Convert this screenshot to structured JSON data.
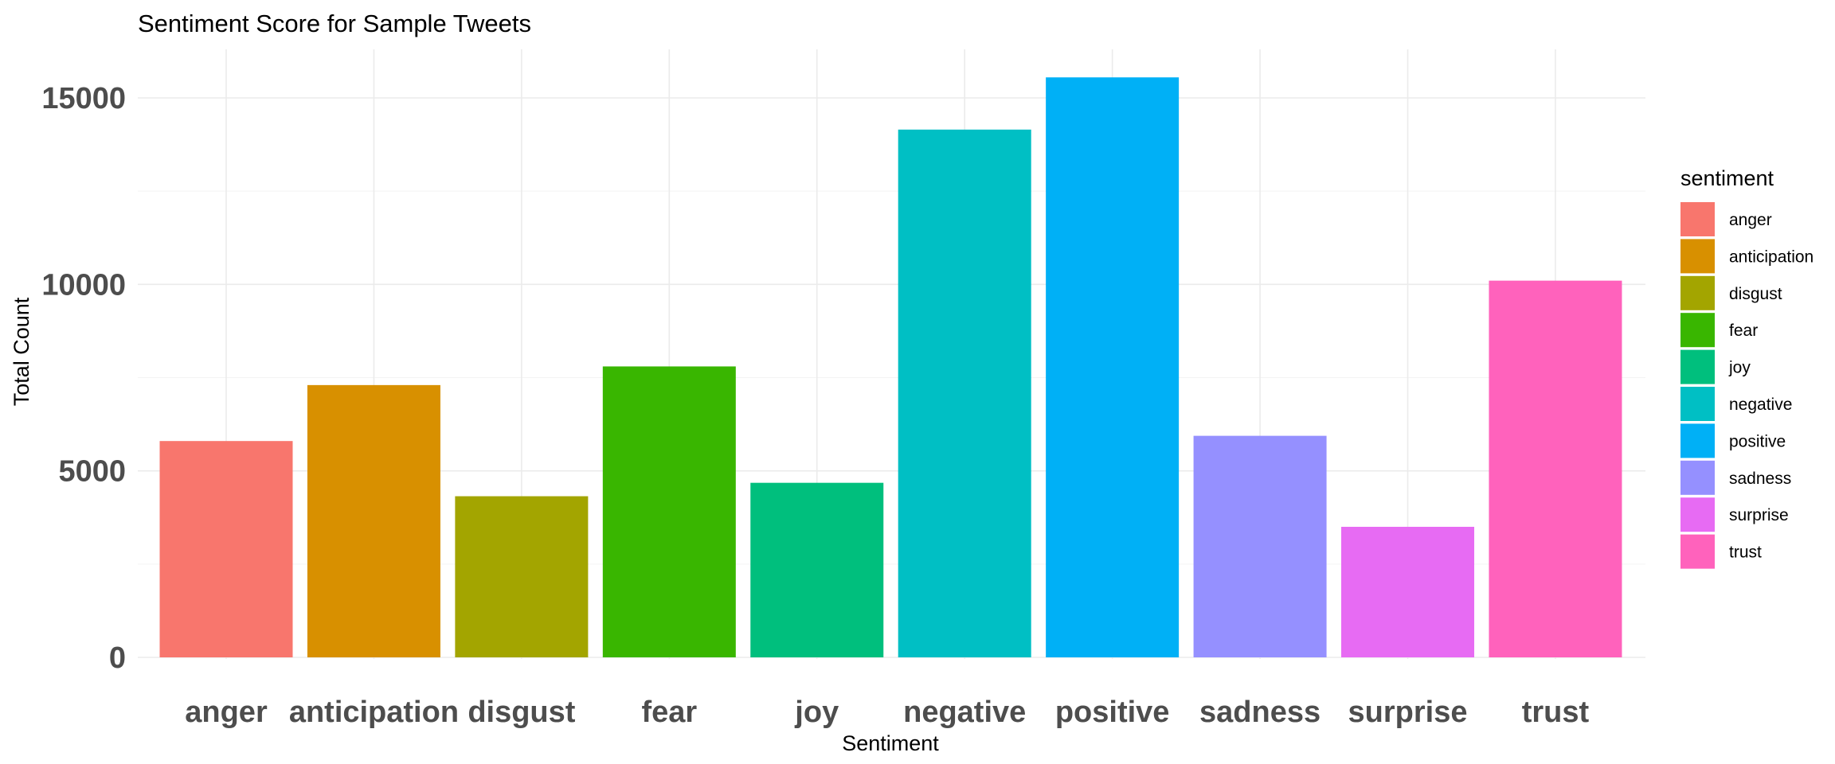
{
  "chart_data": {
    "type": "bar",
    "title": "Sentiment Score for Sample Tweets",
    "xlabel": "Sentiment",
    "ylabel": "Total Count",
    "categories": [
      "anger",
      "anticipation",
      "disgust",
      "fear",
      "joy",
      "negative",
      "positive",
      "sadness",
      "surprise",
      "trust"
    ],
    "values": [
      5800,
      7300,
      4320,
      7800,
      4680,
      14150,
      15550,
      5940,
      3500,
      10100
    ],
    "colors": [
      "#F8766D",
      "#D89000",
      "#A3A500",
      "#39B600",
      "#00BF7D",
      "#00BFC4",
      "#00B0F6",
      "#9590FF",
      "#E76BF3",
      "#FF62BC"
    ],
    "yticks": [
      0,
      5000,
      10000,
      15000
    ],
    "ytick_labels": [
      "0",
      "5000",
      "10000",
      "15000"
    ],
    "ylim": [
      0,
      16300
    ],
    "grid": true,
    "legend": {
      "title": "sentiment",
      "placement": "right",
      "entries": [
        "anger",
        "anticipation",
        "disgust",
        "fear",
        "joy",
        "negative",
        "positive",
        "sadness",
        "surprise",
        "trust"
      ]
    }
  }
}
